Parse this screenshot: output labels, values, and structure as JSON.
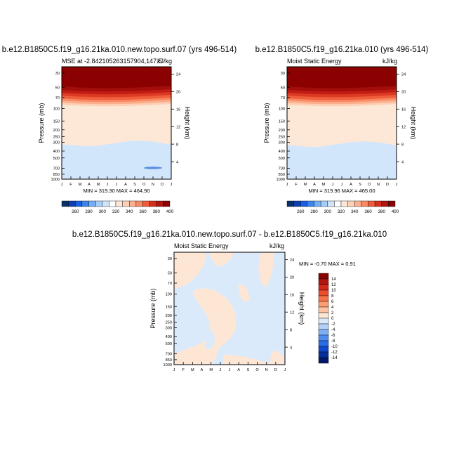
{
  "chart_data": [
    {
      "type": "heatmap",
      "main_title": "b.e12.B1850C5.f19_g16.21ka.010.new.topo.surf.07 (yrs 496-514)",
      "left_title": "MSE at -2.842105263157904,147.5",
      "right_title": "kJ/kg",
      "ylabel": "Pressure (mb)",
      "y2label": "Height (km)",
      "xticks": [
        "J",
        "F",
        "M",
        "A",
        "M",
        "J",
        "J",
        "A",
        "S",
        "O",
        "N",
        "D",
        "J"
      ],
      "yticks": [
        "30",
        "50",
        "70",
        "100",
        "150",
        "200",
        "250",
        "300",
        "400",
        "500",
        "700",
        "850",
        "1000"
      ],
      "y2ticks": [
        "24",
        "20",
        "16",
        "12",
        "8",
        "4"
      ],
      "footer": "MIN = 319.30 MAX = 464.90",
      "colorbar_labels": [
        "260",
        "280",
        "300",
        "320",
        "340",
        "360",
        "380",
        "400"
      ]
    },
    {
      "type": "heatmap",
      "main_title": "b.e12.B1850C5.f19_g16.21ka.010 (yrs 496-514)",
      "left_title": "Moist Static Energy",
      "right_title": "kJ/kg",
      "ylabel": "Pressure (mb)",
      "y2label": "Height (km)",
      "xticks": [
        "J",
        "F",
        "M",
        "A",
        "M",
        "J",
        "J",
        "A",
        "S",
        "O",
        "N",
        "D",
        "J"
      ],
      "yticks": [
        "30",
        "50",
        "70",
        "100",
        "150",
        "200",
        "250",
        "300",
        "400",
        "500",
        "700",
        "850",
        "1000"
      ],
      "y2ticks": [
        "24",
        "20",
        "16",
        "12",
        "8",
        "4"
      ],
      "footer": "MIN = 319.96 MAX = 465.00",
      "colorbar_labels": [
        "260",
        "280",
        "300",
        "320",
        "340",
        "360",
        "380",
        "400"
      ]
    },
    {
      "type": "heatmap",
      "main_title": "b.e12.B1850C5.f19_g16.21ka.010.new.topo.surf.07 - b.e12.B1850C5.f19_g16.21ka.010",
      "left_title": "Moist Static Energy",
      "right_title": "kJ/kg",
      "ylabel": "Pressure (mb)",
      "y2label": "Height (km)",
      "xticks": [
        "J",
        "F",
        "M",
        "A",
        "M",
        "J",
        "J",
        "A",
        "S",
        "O",
        "N",
        "D",
        "J"
      ],
      "yticks": [
        "30",
        "50",
        "70",
        "100",
        "150",
        "200",
        "250",
        "300",
        "400",
        "500",
        "700",
        "850",
        "1000"
      ],
      "y2ticks": [
        "24",
        "20",
        "16",
        "12",
        "8",
        "4"
      ],
      "minmax": "MIN = -0.70 MAX =   0.91",
      "colorbar_labels": [
        "14",
        "12",
        "10",
        "8",
        "6",
        "4",
        "2",
        "0",
        "-2",
        "-4",
        "-6",
        "-8",
        "-10",
        "-12",
        "-14"
      ]
    }
  ],
  "colors": {
    "seq_colorbar": [
      "#08306b",
      "#0d3fb0",
      "#1a5fe0",
      "#3c84ef",
      "#74aef5",
      "#a6cdf8",
      "#cfe4fb",
      "#ffffff",
      "#fde8d8",
      "#fdd0b5",
      "#fcb08e",
      "#f98a64",
      "#ef5a3a",
      "#d72e1e",
      "#b01510",
      "#8b0000"
    ],
    "div_colorbar": [
      "#8b0000",
      "#b01510",
      "#d22a1a",
      "#ec4d2c",
      "#f7744a",
      "#fb9c72",
      "#fdc2a1",
      "#fde6d4",
      "#dbeafb",
      "#b2d1f8",
      "#7fb0f3",
      "#4f8eee",
      "#2a6ee6",
      "#1149cc",
      "#072f9c",
      "#041a68"
    ],
    "mse_layers": [
      "#8b0000",
      "#a30d0a",
      "#c21d14",
      "#dc3a22",
      "#ef5f3c",
      "#f98a64",
      "#fcae8c",
      "#fdd0b5",
      "#fde8d8"
    ],
    "mid_band": "#fde8d8",
    "low_band": "#d2e6fb",
    "low_blob": "#5b8fe3",
    "diff_pos": "#fde6d4",
    "diff_neg": "#dbeafb"
  }
}
